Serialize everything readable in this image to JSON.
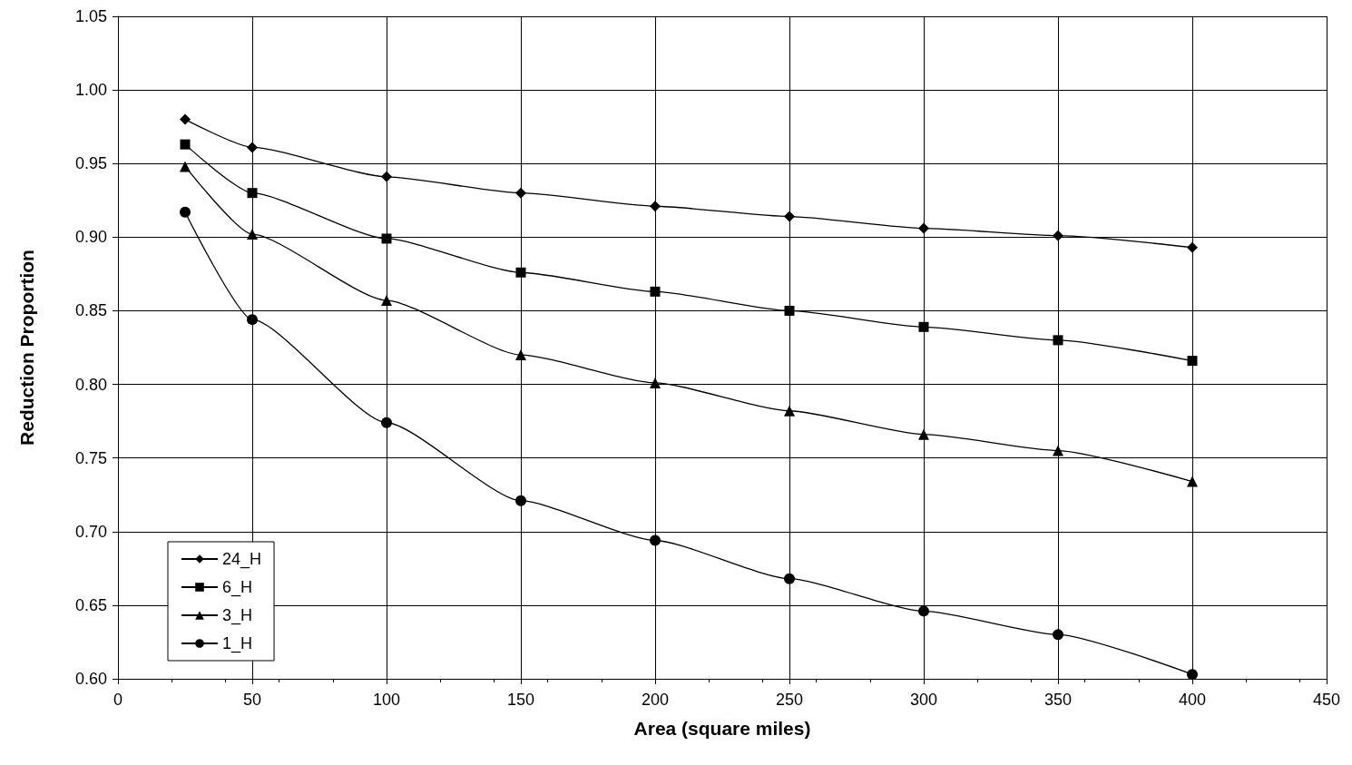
{
  "chart_data": {
    "type": "line",
    "xlabel": "Area (square miles)",
    "ylabel": "Reduction Proportion",
    "x": [
      25,
      50,
      100,
      150,
      200,
      250,
      300,
      350,
      400
    ],
    "series": [
      {
        "name": "24_H",
        "color": "#000000",
        "marker": "diamond",
        "values": [
          0.98,
          0.961,
          0.941,
          0.93,
          0.921,
          0.914,
          0.906,
          0.901,
          0.893
        ]
      },
      {
        "name": "6_H",
        "color": "#000000",
        "marker": "square",
        "values": [
          0.963,
          0.93,
          0.899,
          0.876,
          0.863,
          0.85,
          0.839,
          0.83,
          0.816
        ]
      },
      {
        "name": "3_H",
        "color": "#000000",
        "marker": "triangle",
        "values": [
          0.948,
          0.902,
          0.857,
          0.82,
          0.801,
          0.782,
          0.766,
          0.755,
          0.734
        ]
      },
      {
        "name": "1_H",
        "color": "#000000",
        "marker": "circle",
        "values": [
          0.917,
          0.844,
          0.774,
          0.721,
          0.694,
          0.668,
          0.646,
          0.63,
          0.603
        ]
      }
    ],
    "xlim": [
      0,
      450
    ],
    "xticks": [
      0,
      50,
      100,
      150,
      200,
      250,
      300,
      350,
      400,
      450
    ],
    "ylim": [
      0.6,
      1.05
    ],
    "yticks": [
      {
        "value": 0.6,
        "label": "0.60"
      },
      {
        "value": 0.65,
        "label": "0.65"
      },
      {
        "value": 0.7,
        "label": "0.70"
      },
      {
        "value": 0.75,
        "label": "0.75"
      },
      {
        "value": 0.8,
        "label": "0.80"
      },
      {
        "value": 0.85,
        "label": "0.85"
      },
      {
        "value": 0.9,
        "label": "0.90"
      },
      {
        "value": 0.95,
        "label": "0.95"
      },
      {
        "value": 1.0,
        "label": "1.00"
      },
      {
        "value": 1.05,
        "label": "1.05"
      }
    ],
    "grid": true,
    "legend": "bottom left",
    "line_style": "solid"
  }
}
